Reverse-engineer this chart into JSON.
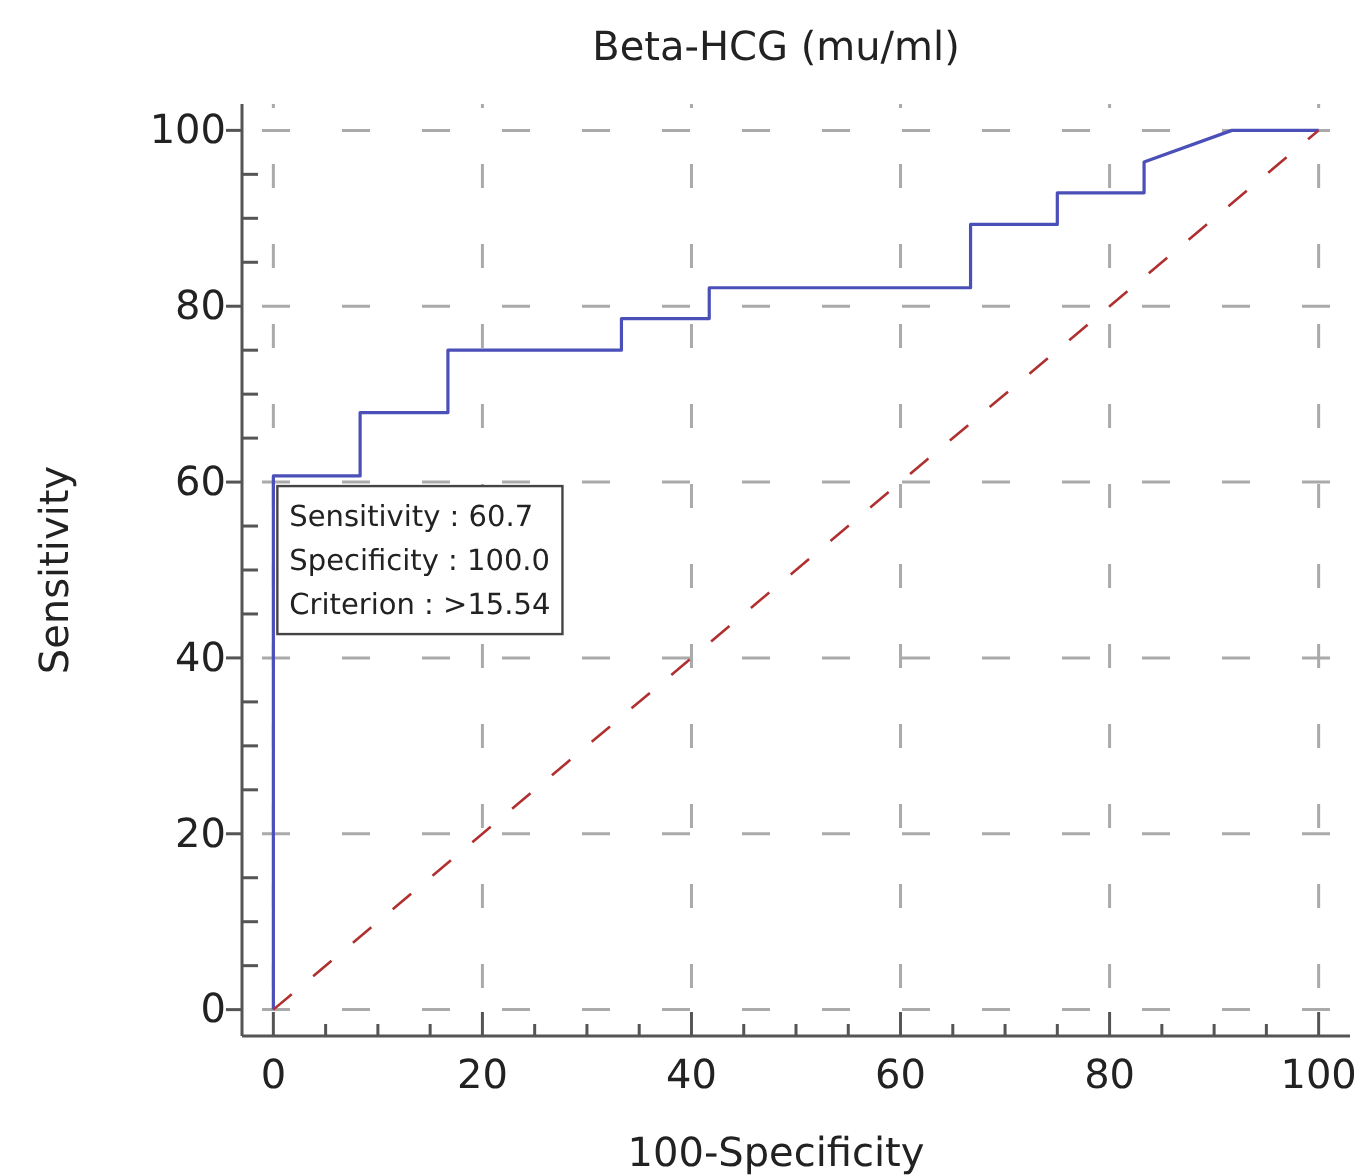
{
  "chart_data": {
    "type": "step",
    "title": "Beta-HCG (mu/ml)",
    "xlabel": "100-Specificity",
    "ylabel": "Sensitivity",
    "xlim": [
      -3,
      103
    ],
    "ylim": [
      -3,
      103
    ],
    "xticks": [
      0,
      {
        "value": 5,
        "label": null
      },
      {
        "value": 10,
        "label": null
      },
      {
        "value": 15,
        "label": null
      },
      20,
      {
        "value": 25,
        "label": null
      },
      {
        "value": 30,
        "label": null
      },
      {
        "value": 35,
        "label": null
      },
      40,
      {
        "value": 45,
        "label": null
      },
      {
        "value": 50,
        "label": null
      },
      {
        "value": 55,
        "label": null
      },
      60,
      {
        "value": 65,
        "label": null
      },
      {
        "value": 70,
        "label": null
      },
      {
        "value": 75,
        "label": null
      },
      80,
      {
        "value": 85,
        "label": null
      },
      {
        "value": 90,
        "label": null
      },
      {
        "value": 95,
        "label": null
      },
      100
    ],
    "yticks": [
      0,
      {
        "value": 5,
        "label": null
      },
      {
        "value": 10,
        "label": null
      },
      {
        "value": 15,
        "label": null
      },
      20,
      {
        "value": 25,
        "label": null
      },
      {
        "value": 30,
        "label": null
      },
      {
        "value": 35,
        "label": null
      },
      40,
      {
        "value": 45,
        "label": null
      },
      {
        "value": 50,
        "label": null
      },
      {
        "value": 55,
        "label": null
      },
      60,
      {
        "value": 65,
        "label": null
      },
      {
        "value": 70,
        "label": null
      },
      {
        "value": 75,
        "label": null
      },
      80,
      {
        "value": 85,
        "label": null
      },
      {
        "value": 90,
        "label": null
      },
      {
        "value": 95,
        "label": null
      },
      100
    ],
    "grid": true,
    "series": [
      {
        "type": "step",
        "color": "#4b50b8",
        "line_style": "solid",
        "x": [
          0,
          0,
          8.3,
          8.3,
          16.7,
          16.7,
          33.3,
          33.3,
          41.7,
          41.7,
          66.7,
          66.7,
          75,
          75,
          83.3,
          83.3,
          91.7,
          100
        ],
        "values": [
          0,
          60.7,
          60.7,
          67.9,
          67.9,
          75,
          75,
          78.6,
          78.6,
          82.1,
          82.1,
          89.3,
          89.3,
          92.9,
          92.9,
          96.4,
          100,
          100
        ]
      },
      {
        "type": "line",
        "color": "#b03030",
        "line_style": "dashed",
        "x": [
          0,
          100
        ],
        "values": [
          0,
          100
        ]
      }
    ],
    "annotations": [
      "Sensitivity : 60.7",
      "Specificity : 100.0",
      "Criterion : >15.54"
    ]
  }
}
